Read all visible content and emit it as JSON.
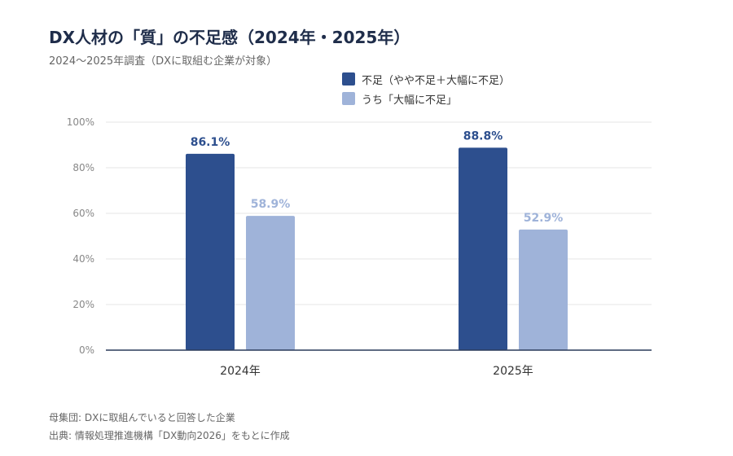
{
  "chart_data": {
    "type": "bar",
    "title": "DX人材の「質」の不足感（2024年・2025年）",
    "subtitle": "2024〜2025年調査（DXに取組む企業が対象）",
    "categories": [
      "2024年",
      "2025年"
    ],
    "series": [
      {
        "name": "不足（やや不足＋大幅に不足）",
        "values": [
          86.1,
          88.8
        ],
        "labels": [
          "86.1%",
          "88.8%"
        ],
        "color": "#2d4f8e"
      },
      {
        "name": "うち「大幅に不足」",
        "values": [
          58.9,
          52.9
        ],
        "labels": [
          "58.9%",
          "52.9%"
        ],
        "color": "#9fb3d9"
      }
    ],
    "ylim": [
      0,
      100
    ],
    "yticks": [
      0,
      20,
      40,
      60,
      80,
      100
    ],
    "ytick_labels": [
      "0%",
      "20%",
      "40%",
      "60%",
      "80%",
      "100%"
    ],
    "grid": true,
    "legend_position": "top-center"
  },
  "notes": {
    "population": "母集団: DXに取組んでいると回答した企業",
    "source": "出典: 情報処理推進機構「DX動向2026」をもとに作成"
  }
}
